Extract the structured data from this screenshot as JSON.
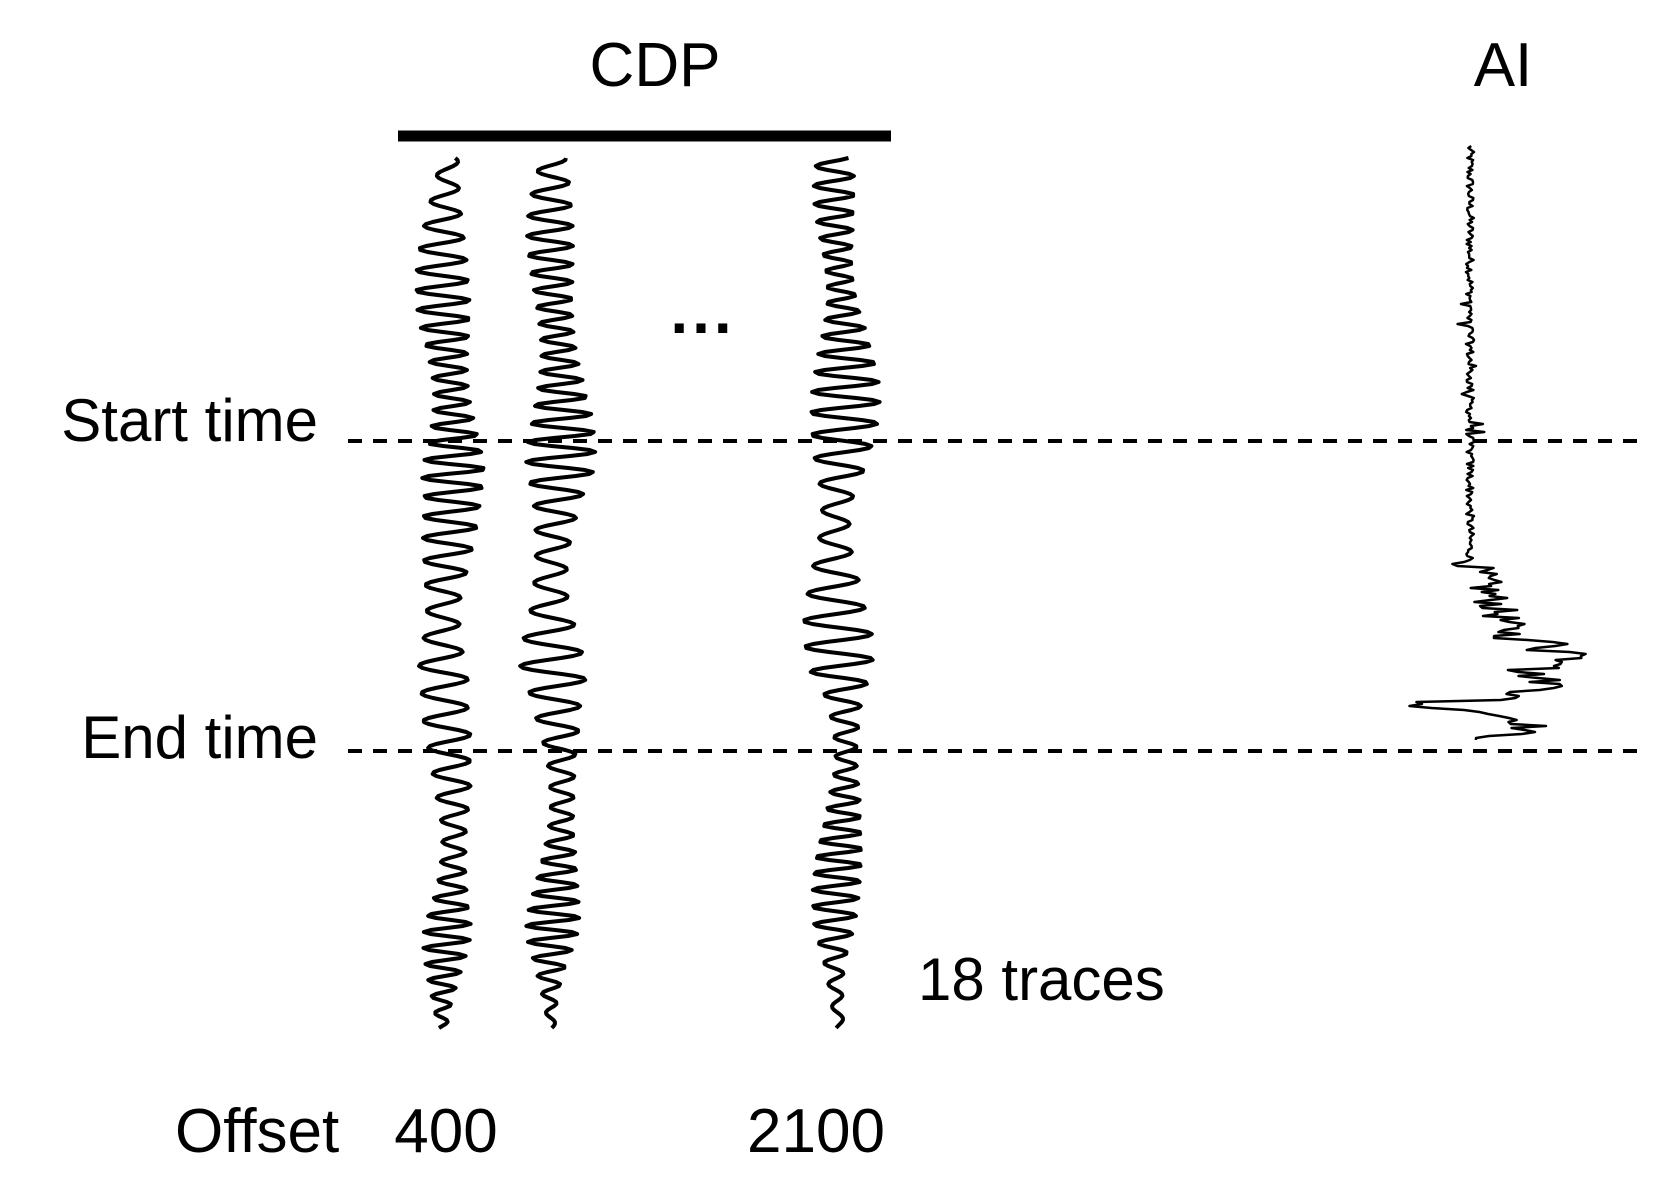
{
  "header": {
    "cdp_label": "CDP",
    "ai_label": "AI"
  },
  "time_window": {
    "start_label": "Start time",
    "end_label": "End time"
  },
  "traces": {
    "ellipsis": "...",
    "count_label": "18 traces"
  },
  "offset_axis": {
    "label": "Offset",
    "min_label": "400",
    "max_label": "2100"
  },
  "colors": {
    "ink": "#000000",
    "background": "#ffffff"
  }
}
